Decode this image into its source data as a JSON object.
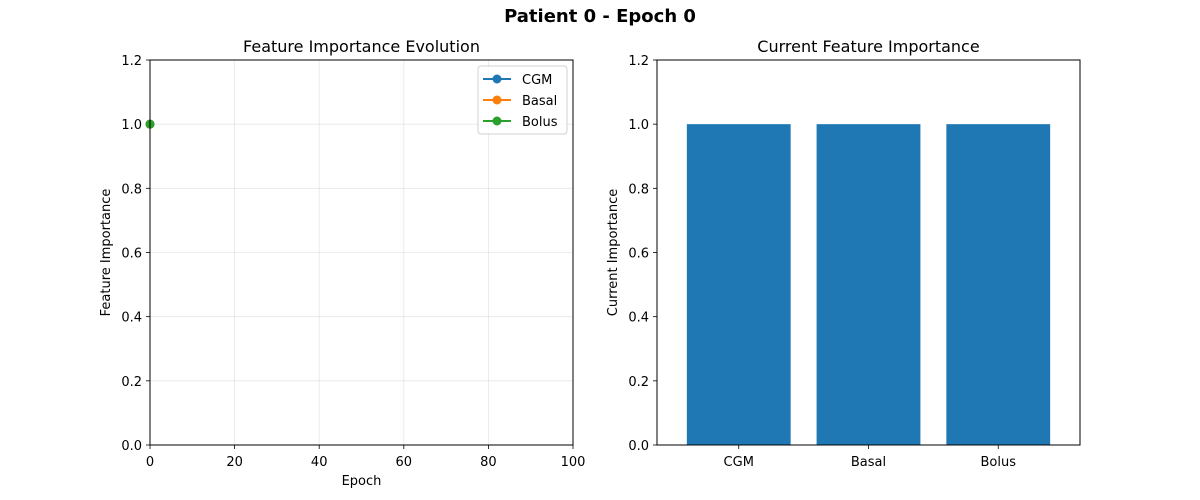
{
  "suptitle": "Patient 0 - Epoch 0",
  "chart_data": [
    {
      "type": "line",
      "title": "Feature Importance Evolution",
      "xlabel": "Epoch",
      "ylabel": "Feature Importance",
      "xlim": [
        0,
        100
      ],
      "ylim": [
        0,
        1.2
      ],
      "xticks": [
        0,
        20,
        40,
        60,
        80,
        100
      ],
      "yticks": [
        0.0,
        0.2,
        0.4,
        0.6,
        0.8,
        1.0,
        1.2
      ],
      "grid": true,
      "legend_position": "top-right",
      "series": [
        {
          "name": "CGM",
          "color": "#1f77b4",
          "x": [
            0
          ],
          "y": [
            1.0
          ]
        },
        {
          "name": "Basal",
          "color": "#ff7f0e",
          "x": [
            0
          ],
          "y": [
            1.0
          ]
        },
        {
          "name": "Bolus",
          "color": "#2ca02c",
          "x": [
            0
          ],
          "y": [
            1.0
          ]
        }
      ]
    },
    {
      "type": "bar",
      "title": "Current Feature Importance",
      "xlabel": "",
      "ylabel": "Current Importance",
      "ylim": [
        0,
        1.2
      ],
      "yticks": [
        0.0,
        0.2,
        0.4,
        0.6,
        0.8,
        1.0,
        1.2
      ],
      "categories": [
        "CGM",
        "Basal",
        "Bolus"
      ],
      "values": [
        1.0,
        1.0,
        1.0
      ],
      "color": "#1f77b4",
      "grid": false
    }
  ]
}
